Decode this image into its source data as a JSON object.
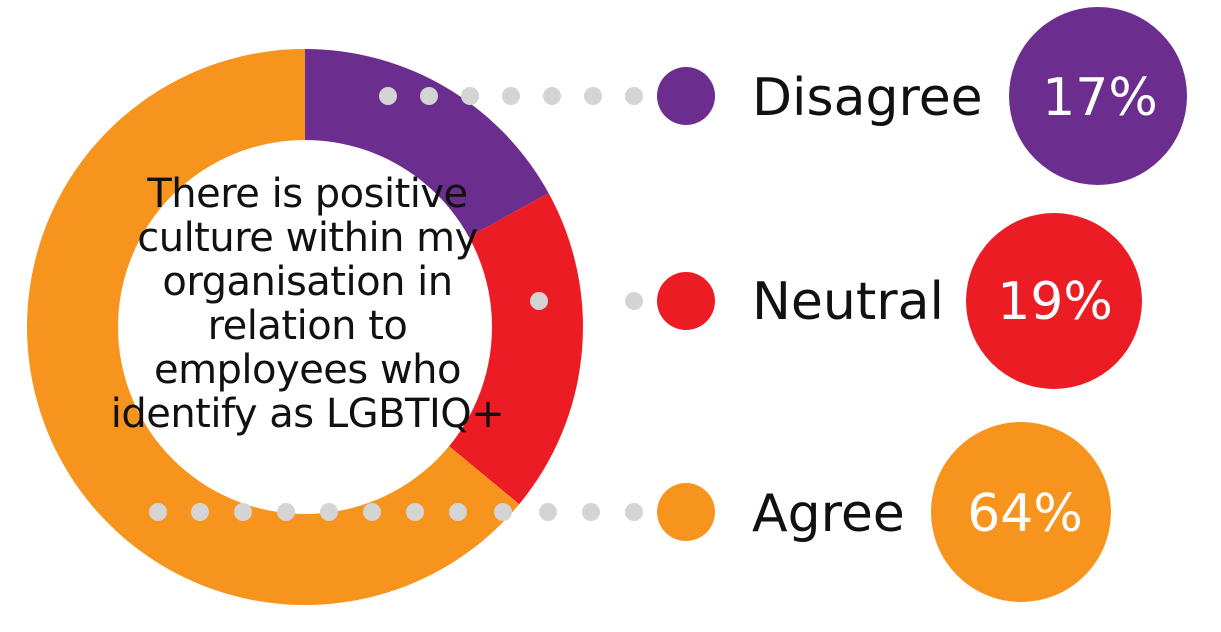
{
  "chart_data": {
    "type": "pie",
    "title": "",
    "center_text": "There is positive culture within my organisation in relation to employees who identify as LGBTIQ+",
    "slices": [
      {
        "label": "Disagree",
        "value": 17,
        "display": "17%",
        "color": "#6b2d8e"
      },
      {
        "label": "Neutral",
        "value": 19,
        "display": "19%",
        "color": "#ec1c24"
      },
      {
        "label": "Agree",
        "value": 64,
        "display": "64%",
        "color": "#f7941e"
      }
    ]
  },
  "colors": {
    "connector_dot": "#d4d4d4",
    "background": "#ffffff"
  }
}
